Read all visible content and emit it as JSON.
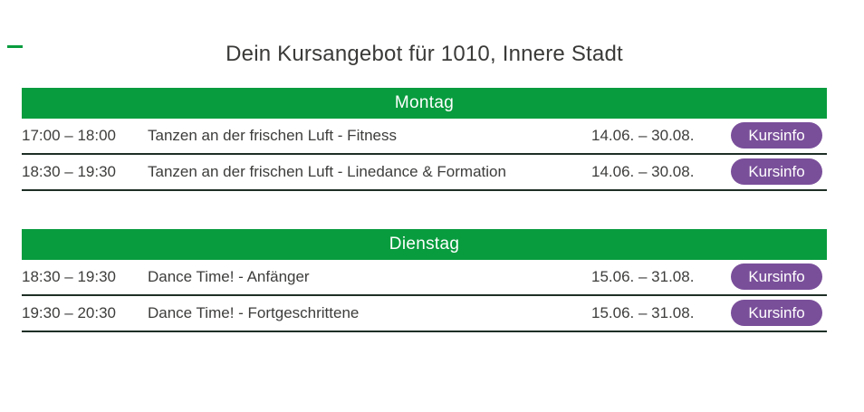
{
  "page": {
    "title": "Dein Kursangebot für 1010, Innere Stadt"
  },
  "colors": {
    "green": "#089c3e",
    "purple": "#7a4f9a",
    "text": "#3d3d3c",
    "separator": "#1e2f26"
  },
  "button_label": "Kursinfo",
  "sections": [
    {
      "day": "Montag",
      "rows": [
        {
          "time": "17:00 – 18:00",
          "course": "Tanzen an der frischen Luft - Fitness",
          "dates": "14.06. – 30.08."
        },
        {
          "time": "18:30 – 19:30",
          "course": "Tanzen an der frischen Luft - Linedance & Formation",
          "dates": "14.06. – 30.08."
        }
      ]
    },
    {
      "day": "Dienstag",
      "rows": [
        {
          "time": "18:30 – 19:30",
          "course": "Dance Time! - Anfänger",
          "dates": "15.06. – 31.08."
        },
        {
          "time": "19:30 – 20:30",
          "course": "Dance Time! - Fortgeschrittene",
          "dates": "15.06. – 31.08."
        }
      ]
    }
  ]
}
